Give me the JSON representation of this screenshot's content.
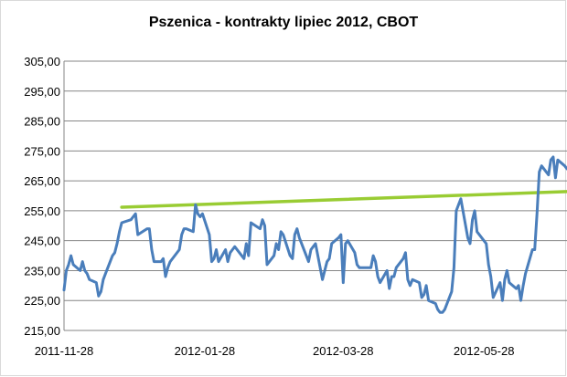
{
  "chart_data": {
    "type": "line",
    "title": "Pszenica - kontrakty lipiec 2012, CBOT",
    "xlabel": "",
    "ylabel": "",
    "ylim": [
      215,
      305
    ],
    "yticks": [
      "215,00",
      "225,00",
      "235,00",
      "245,00",
      "255,00",
      "265,00",
      "275,00",
      "285,00",
      "295,00",
      "305,00"
    ],
    "xticks": [
      "2011-11-28",
      "2012-01-28",
      "2012-03-28",
      "2012-05-28"
    ],
    "xtick_values": [
      "2011-11-28",
      "2012-01-28",
      "2012-03-28",
      "2012-05-28"
    ],
    "xlim": [
      "2011-11-28",
      "2012-07-03"
    ],
    "grid": true,
    "legend": "none",
    "series": [
      {
        "color": "#4a7ebb",
        "x": [
          "2011-11-28",
          "2011-11-29",
          "2011-11-30",
          "2011-12-01",
          "2011-12-02",
          "2011-12-05",
          "2011-12-06",
          "2011-12-07",
          "2011-12-08",
          "2011-12-09",
          "2011-12-12",
          "2011-12-13",
          "2011-12-14",
          "2011-12-15",
          "2011-12-16",
          "2011-12-19",
          "2011-12-20",
          "2011-12-21",
          "2011-12-22",
          "2011-12-23",
          "2011-12-27",
          "2011-12-28",
          "2011-12-29",
          "2011-12-30",
          "2012-01-03",
          "2012-01-04",
          "2012-01-05",
          "2012-01-06",
          "2012-01-09",
          "2012-01-10",
          "2012-01-11",
          "2012-01-12",
          "2012-01-13",
          "2012-01-17",
          "2012-01-18",
          "2012-01-19",
          "2012-01-20",
          "2012-01-23",
          "2012-01-24",
          "2012-01-25",
          "2012-01-26",
          "2012-01-27",
          "2012-01-30",
          "2012-01-31",
          "2012-02-01",
          "2012-02-02",
          "2012-02-03",
          "2012-02-06",
          "2012-02-07",
          "2012-02-08",
          "2012-02-09",
          "2012-02-10",
          "2012-02-13",
          "2012-02-14",
          "2012-02-15",
          "2012-02-16",
          "2012-02-17",
          "2012-02-21",
          "2012-02-22",
          "2012-02-23",
          "2012-02-24",
          "2012-02-27",
          "2012-02-28",
          "2012-02-29",
          "2012-03-01",
          "2012-03-02",
          "2012-03-05",
          "2012-03-06",
          "2012-03-07",
          "2012-03-08",
          "2012-03-09",
          "2012-03-12",
          "2012-03-13",
          "2012-03-14",
          "2012-03-15",
          "2012-03-16",
          "2012-03-19",
          "2012-03-20",
          "2012-03-21",
          "2012-03-22",
          "2012-03-23",
          "2012-03-26",
          "2012-03-27",
          "2012-03-28",
          "2012-03-29",
          "2012-03-30",
          "2012-04-02",
          "2012-04-03",
          "2012-04-04",
          "2012-04-05",
          "2012-04-09",
          "2012-04-10",
          "2012-04-11",
          "2012-04-12",
          "2012-04-13",
          "2012-04-16",
          "2012-04-17",
          "2012-04-18",
          "2012-04-19",
          "2012-04-20",
          "2012-04-23",
          "2012-04-24",
          "2012-04-25",
          "2012-04-26",
          "2012-04-27",
          "2012-04-30",
          "2012-05-01",
          "2012-05-02",
          "2012-05-03",
          "2012-05-04",
          "2012-05-07",
          "2012-05-08",
          "2012-05-09",
          "2012-05-10",
          "2012-05-11",
          "2012-05-14",
          "2012-05-15",
          "2012-05-16",
          "2012-05-17",
          "2012-05-18",
          "2012-05-21",
          "2012-05-22",
          "2012-05-23",
          "2012-05-24",
          "2012-05-25",
          "2012-05-29",
          "2012-05-30",
          "2012-05-31",
          "2012-06-01",
          "2012-06-04",
          "2012-06-05",
          "2012-06-06",
          "2012-06-07",
          "2012-06-08",
          "2012-06-11",
          "2012-06-12",
          "2012-06-13",
          "2012-06-14",
          "2012-06-15",
          "2012-06-18",
          "2012-06-19",
          "2012-06-20",
          "2012-06-21",
          "2012-06-22",
          "2012-06-25",
          "2012-06-26",
          "2012-06-27",
          "2012-06-28",
          "2012-06-29",
          "2012-07-02",
          "2012-07-03"
        ],
        "values": [
          228.5,
          235,
          237,
          240,
          237,
          235,
          238,
          235,
          234,
          232,
          231,
          226.5,
          228,
          232,
          234,
          240,
          241,
          244,
          248,
          251,
          252,
          253,
          254,
          247,
          249,
          249,
          242,
          238,
          238,
          239,
          233,
          236,
          238,
          242,
          247,
          249,
          249,
          248,
          257,
          254,
          253,
          254,
          247,
          238,
          239,
          242,
          238,
          242,
          238,
          241,
          242,
          243,
          240,
          239,
          244,
          240,
          251,
          249,
          252,
          250,
          237,
          240,
          244,
          242,
          248,
          247,
          240,
          239,
          247,
          249,
          246,
          240,
          238,
          242,
          243,
          244,
          232,
          235,
          238,
          239,
          244,
          246,
          247,
          231,
          244,
          245,
          241,
          237,
          236,
          236,
          236,
          240,
          238,
          233,
          231,
          235,
          229,
          233,
          233,
          236,
          239,
          241,
          232,
          230,
          232,
          231,
          226,
          227,
          230,
          225,
          224,
          222,
          221,
          221,
          222,
          228,
          236,
          255,
          257,
          259,
          246,
          244,
          252,
          255,
          248,
          244,
          237,
          233,
          226,
          231,
          225,
          232,
          235,
          231,
          229,
          230,
          225,
          230,
          234,
          242,
          242,
          254,
          268,
          270,
          267,
          272,
          273,
          266,
          272,
          270,
          269
        ]
      },
      {
        "color": "#99cc33",
        "x": [
          "2011-12-23",
          "2012-07-03"
        ],
        "values": [
          256.2,
          261.4
        ]
      }
    ]
  }
}
